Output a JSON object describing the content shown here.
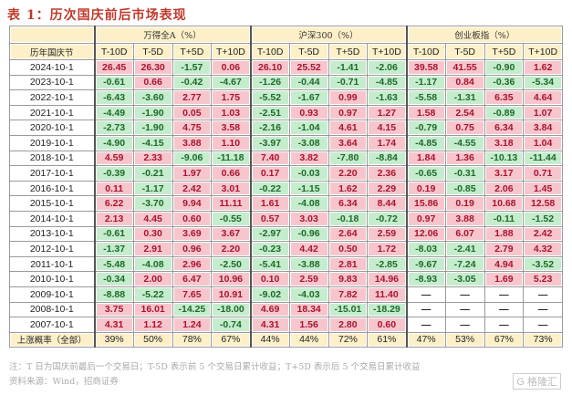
{
  "title": "表 1：历次国庆前后市场表现",
  "header": {
    "row_label": "历年国庆节",
    "groups": [
      "万得全A（%）",
      "沪深300（%）",
      "创业板指（%）"
    ],
    "subcols": [
      "T-10D",
      "T-5D",
      "T+5D",
      "T+10D"
    ]
  },
  "rows": [
    {
      "date": "2024-10-1",
      "values": [
        "26.45",
        "26.30",
        "-1.57",
        "0.06",
        "26.10",
        "25.52",
        "-1.41",
        "-2.06",
        "39.58",
        "41.55",
        "-0.90",
        "1.62"
      ]
    },
    {
      "date": "2023-10-1",
      "values": [
        "-0.61",
        "0.66",
        "-0.42",
        "-4.67",
        "-1.26",
        "-0.44",
        "-0.71",
        "-4.85",
        "-1.17",
        "0.84",
        "-0.36",
        "-5.34"
      ]
    },
    {
      "date": "2022-10-1",
      "values": [
        "-6.43",
        "-3.60",
        "2.77",
        "1.75",
        "-5.52",
        "-1.67",
        "0.99",
        "-1.63",
        "-5.58",
        "-1.31",
        "6.35",
        "4.64"
      ]
    },
    {
      "date": "2021-10-1",
      "values": [
        "-4.49",
        "-1.90",
        "0.05",
        "1.03",
        "-2.51",
        "0.93",
        "0.97",
        "1.27",
        "1.58",
        "2.54",
        "-0.89",
        "1.07"
      ]
    },
    {
      "date": "2020-10-1",
      "values": [
        "-2.73",
        "-1.90",
        "4.75",
        "3.58",
        "-2.16",
        "-1.04",
        "4.61",
        "4.15",
        "-0.79",
        "0.75",
        "6.34",
        "3.84"
      ]
    },
    {
      "date": "2019-10-1",
      "values": [
        "-4.90",
        "-4.15",
        "3.88",
        "1.10",
        "-3.97",
        "-3.08",
        "3.64",
        "1.74",
        "-4.85",
        "-4.55",
        "3.18",
        "1.04"
      ]
    },
    {
      "date": "2018-10-1",
      "values": [
        "4.59",
        "2.33",
        "-9.06",
        "-11.18",
        "7.40",
        "3.82",
        "-7.80",
        "-8.84",
        "1.84",
        "1.36",
        "-10.13",
        "-11.44"
      ]
    },
    {
      "date": "2017-10-1",
      "values": [
        "-0.39",
        "-0.21",
        "1.97",
        "0.66",
        "0.17",
        "-0.03",
        "2.20",
        "2.36",
        "-0.65",
        "-0.31",
        "3.17",
        "0.71"
      ]
    },
    {
      "date": "2016-10-1",
      "values": [
        "0.11",
        "-1.17",
        "2.42",
        "3.01",
        "-0.22",
        "-1.15",
        "1.62",
        "2.29",
        "0.19",
        "-0.85",
        "2.06",
        "1.45"
      ]
    },
    {
      "date": "2015-10-1",
      "values": [
        "6.22",
        "-3.70",
        "9.94",
        "11.11",
        "1.61",
        "-4.08",
        "6.34",
        "8.44",
        "15.86",
        "0.19",
        "10.68",
        "12.58"
      ]
    },
    {
      "date": "2014-10-1",
      "values": [
        "2.13",
        "4.45",
        "0.60",
        "-0.55",
        "0.57",
        "3.03",
        "-0.18",
        "-0.72",
        "0.97",
        "3.88",
        "-0.11",
        "-1.52"
      ]
    },
    {
      "date": "2013-10-1",
      "values": [
        "-0.61",
        "0.30",
        "3.69",
        "3.67",
        "-2.97",
        "-0.96",
        "2.64",
        "2.59",
        "12.06",
        "6.07",
        "1.88",
        "2.42"
      ]
    },
    {
      "date": "2012-10-1",
      "values": [
        "-1.37",
        "2.91",
        "0.96",
        "2.20",
        "-0.23",
        "4.42",
        "0.50",
        "1.72",
        "-8.03",
        "-2.41",
        "2.79",
        "4.32"
      ]
    },
    {
      "date": "2011-10-1",
      "values": [
        "-5.48",
        "-4.08",
        "2.96",
        "-2.50",
        "-5.41",
        "-3.88",
        "2.81",
        "-2.85",
        "-9.67",
        "-7.24",
        "4.94",
        "-3.52"
      ]
    },
    {
      "date": "2010-10-1",
      "values": [
        "-0.34",
        "2.00",
        "6.47",
        "10.96",
        "0.10",
        "2.59",
        "9.83",
        "14.96",
        "-8.93",
        "-3.05",
        "1.69",
        "5.23"
      ]
    },
    {
      "date": "2009-10-1",
      "values": [
        "-8.88",
        "-5.22",
        "7.65",
        "10.91",
        "-9.02",
        "-4.03",
        "7.82",
        "11.40",
        "—",
        "—",
        "—",
        "—"
      ]
    },
    {
      "date": "2008-10-1",
      "values": [
        "3.75",
        "16.01",
        "-14.25",
        "-18.00",
        "4.69",
        "18.34",
        "-15.01",
        "-18.29",
        "—",
        "—",
        "—",
        "—"
      ]
    },
    {
      "date": "2007-10-1",
      "values": [
        "4.31",
        "1.12",
        "1.24",
        "-0.74",
        "4.31",
        "1.56",
        "2.80",
        "0.60",
        "—",
        "—",
        "—",
        "—"
      ]
    }
  ],
  "summary": {
    "label": "上涨概率（全部）",
    "values": [
      "39%",
      "50%",
      "78%",
      "67%",
      "44%",
      "44%",
      "72%",
      "61%",
      "47%",
      "53%",
      "67%",
      "73%"
    ]
  },
  "notes": [
    "注：T 日为国庆前最后一个交易日；T-5D 表示前 5 个交易日累计收益；T+5D 表示后 5 个交易日累计收益",
    "资料来源：Wind，招商证券"
  ],
  "watermark": "格隆汇",
  "colors": {
    "positive_bg": "#f7c6cd",
    "positive_text": "#a8142e",
    "negative_bg": "#c6ecce",
    "negative_text": "#1c6a28",
    "header_bg": "#fdf0c8"
  }
}
